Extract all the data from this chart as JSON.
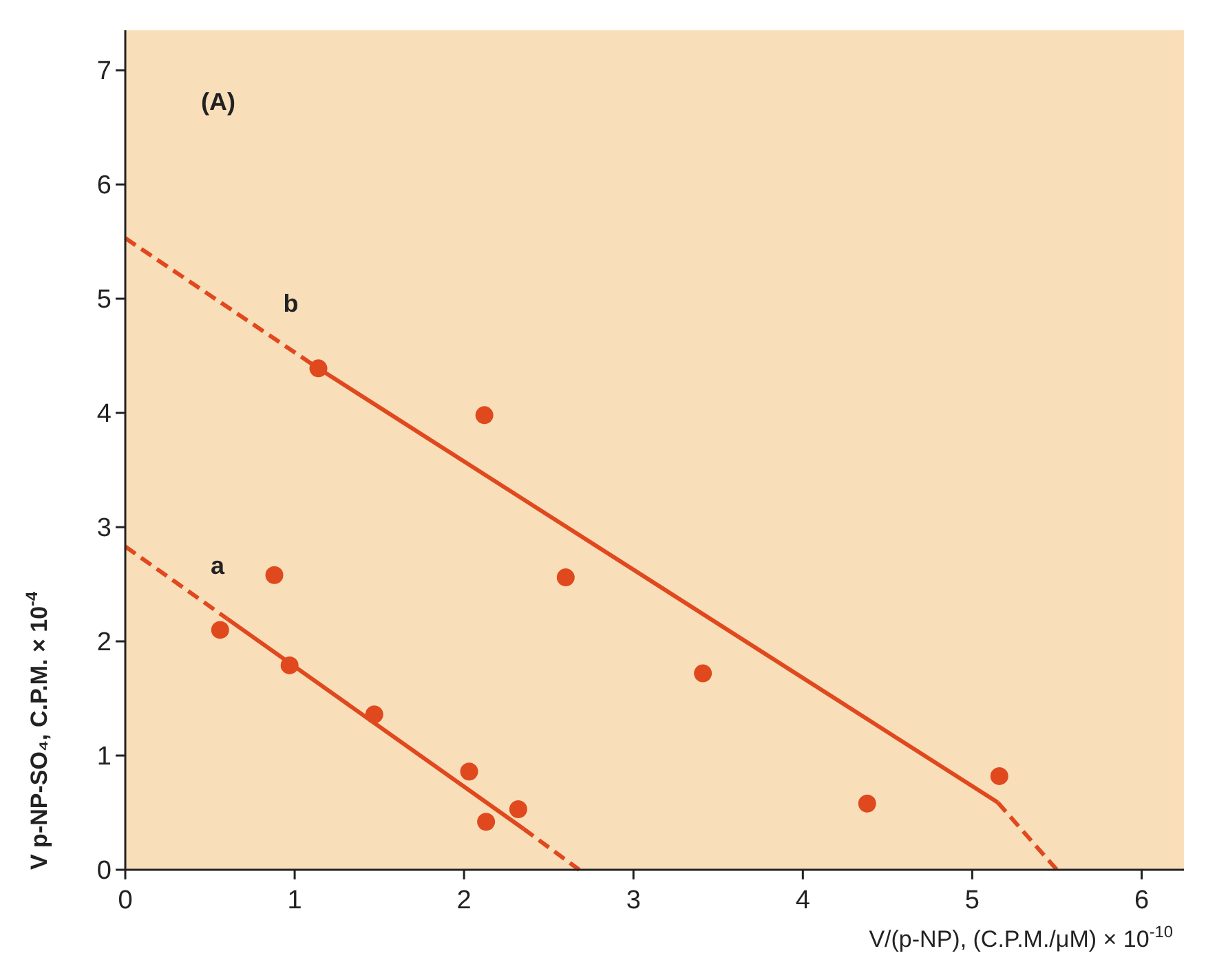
{
  "chart_data": {
    "type": "scatter",
    "xlabel": "V/(p-NP),   (C.P.M./μM) × 10$^{-10}$",
    "ylabel": "V   p-NP-SO₄,  C.P.M. × 10$^{-4}$",
    "annotations": [
      "(A)",
      "b",
      "a"
    ],
    "xlim": [
      0,
      6.25
    ],
    "ylim": [
      0,
      7.35
    ],
    "xticks": [
      0,
      1,
      2,
      3,
      4,
      5,
      6
    ],
    "yticks": [
      0,
      1,
      2,
      3,
      4,
      5,
      6,
      7
    ],
    "grid": false,
    "series": [
      {
        "type": "line",
        "color": "#e0481e",
        "marker": "none",
        "line_style": "solid",
        "x": [
          1.14,
          5.15
        ],
        "values": [
          4.39,
          0.59
        ]
      },
      {
        "type": "line",
        "color": "#e0481e",
        "marker": "none",
        "line_style": "dashed",
        "x": [
          0,
          1.14,
          null,
          5.15,
          5.5
        ],
        "values": [
          5.53,
          4.39,
          null,
          0.59,
          0
        ]
      },
      {
        "type": "line",
        "color": "#e0481e",
        "marker": "none",
        "line_style": "solid",
        "x": [
          0.6,
          2.35
        ],
        "values": [
          2.2,
          0.36
        ]
      },
      {
        "type": "line",
        "color": "#e0481e",
        "marker": "none",
        "line_style": "dashed",
        "x": [
          0,
          0.6,
          null,
          2.35,
          2.68
        ],
        "values": [
          2.83,
          2.2,
          null,
          0.36,
          0
        ]
      },
      {
        "color": "#e0481e",
        "marker": "circle",
        "x": [
          1.14,
          2.12,
          2.6,
          3.41,
          4.38,
          5.16
        ],
        "values": [
          4.39,
          3.98,
          2.56,
          1.72,
          0.58,
          0.82
        ]
      },
      {
        "color": "#e0481e",
        "marker": "circle",
        "x": [
          0.56,
          0.88,
          0.97,
          1.47,
          2.03,
          2.13,
          2.32
        ],
        "values": [
          2.1,
          2.58,
          1.79,
          1.36,
          0.86,
          0.42,
          0.53
        ]
      }
    ]
  }
}
